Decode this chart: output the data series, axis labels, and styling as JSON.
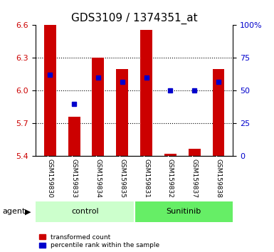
{
  "title": "GDS3109 / 1374351_at",
  "samples": [
    "GSM159830",
    "GSM159833",
    "GSM159834",
    "GSM159835",
    "GSM159831",
    "GSM159832",
    "GSM159837",
    "GSM159838"
  ],
  "red_values": [
    6.6,
    5.76,
    6.3,
    6.2,
    6.56,
    5.42,
    5.47,
    6.2
  ],
  "blue_values_pct": [
    62,
    40,
    60,
    57,
    60,
    50,
    50,
    57
  ],
  "ylim_left": [
    5.4,
    6.6
  ],
  "ylim_right": [
    0,
    100
  ],
  "yticks_left": [
    5.4,
    5.7,
    6.0,
    6.3,
    6.6
  ],
  "yticks_right": [
    0,
    25,
    50,
    75,
    100
  ],
  "ytick_labels_right": [
    "0",
    "25",
    "50",
    "75",
    "100%"
  ],
  "groups": [
    {
      "label": "control",
      "indices": [
        0,
        1,
        2,
        3
      ],
      "color": "#ccffcc"
    },
    {
      "label": "Sunitinib",
      "indices": [
        4,
        5,
        6,
        7
      ],
      "color": "#66ee66"
    }
  ],
  "bar_color": "#cc0000",
  "blue_color": "#0000cc",
  "bar_bottom": 5.4,
  "group_label": "agent",
  "legend_items": [
    {
      "color": "#cc0000",
      "label": "transformed count"
    },
    {
      "color": "#0000cc",
      "label": "percentile rank within the sample"
    }
  ],
  "grid_color": "#000000",
  "bg_color": "#ffffff",
  "tick_label_color_left": "#cc0000",
  "tick_label_color_right": "#0000cc"
}
